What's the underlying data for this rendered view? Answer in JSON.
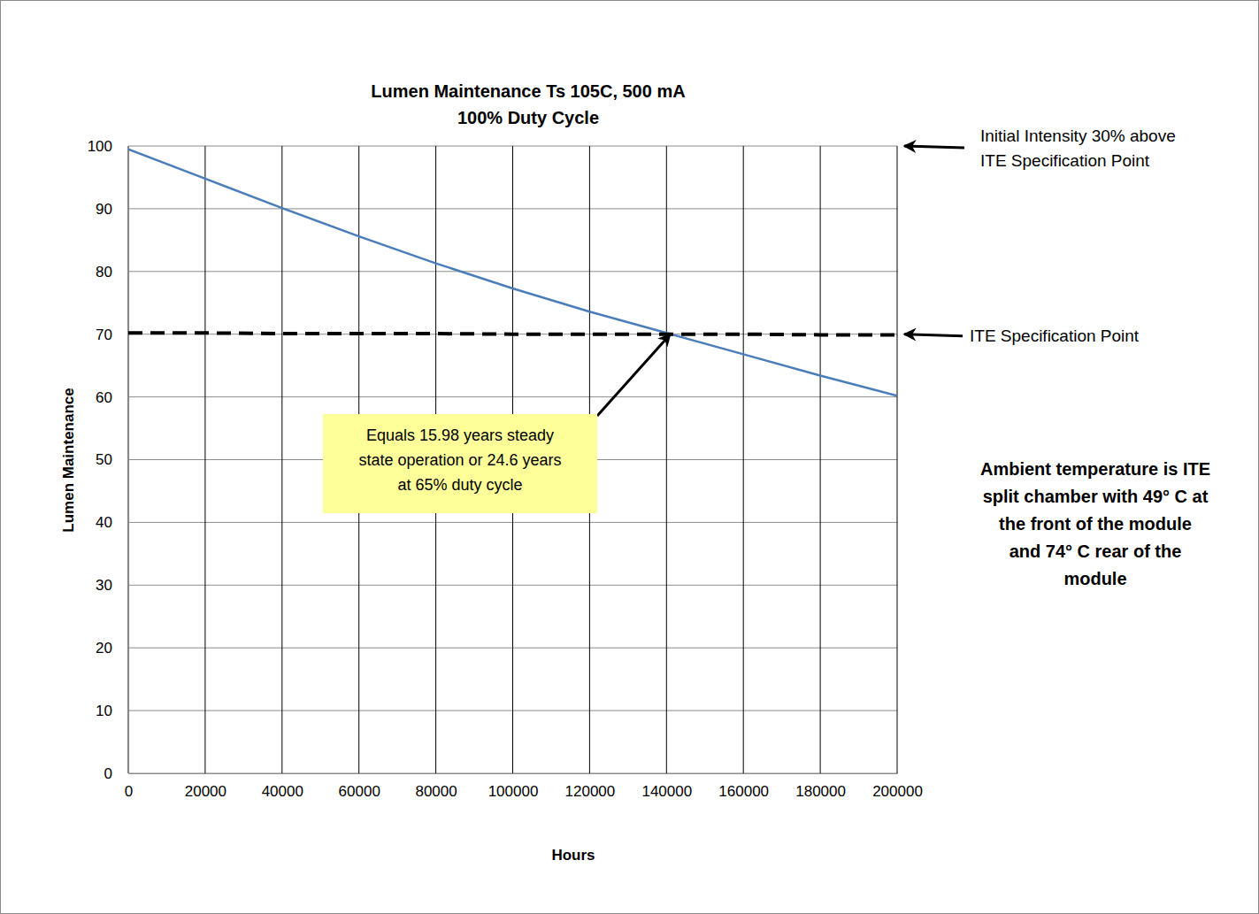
{
  "chart_data": {
    "type": "line",
    "title": "Lumen Maintenance Ts 105C, 500 mA",
    "subtitle": "100% Duty Cycle",
    "x_label": "Hours",
    "y_label": "Lumen Maintenance",
    "x": [
      0,
      20000,
      40000,
      60000,
      80000,
      100000,
      120000,
      140000,
      160000,
      180000,
      200000
    ],
    "series": [
      {
        "color": "#4a7ebb",
        "line_style": "solid",
        "values": [
          99.5,
          94.8,
          90.1,
          85.6,
          81.3,
          77.3,
          73.6,
          70.2,
          66.8,
          63.4,
          60.2
        ]
      },
      {
        "color": "#000000",
        "line_style": "dashed",
        "values": [
          70.2,
          70.2,
          70.1,
          70.1,
          70.1,
          70.0,
          70.0,
          70.0,
          70.0,
          69.9,
          69.9
        ]
      }
    ],
    "xlim": [
      0,
      200000
    ],
    "xticks": [
      0,
      20000,
      40000,
      60000,
      80000,
      100000,
      120000,
      140000,
      160000,
      180000,
      200000
    ],
    "ylim": [
      0,
      100
    ],
    "yticks": [
      0,
      10,
      20,
      30,
      40,
      50,
      60,
      70,
      80,
      90,
      100
    ],
    "grid": true,
    "annotations": [
      {
        "lines": [
          "Initial Intensity 30% above",
          "ITE Specification Point"
        ],
        "y": 100
      },
      {
        "lines": [
          "ITE Specification Point"
        ],
        "y": 70
      },
      {
        "lines": [
          "Equals 15.98 years steady",
          "state operation or 24.6 years",
          "at 65% duty cycle"
        ],
        "x": 141000,
        "y": 70
      },
      {
        "lines": [
          "Ambient temperature is ITE",
          "split chamber with 49° C at",
          "the front of the module",
          "and 74° C rear of the",
          "module"
        ]
      }
    ]
  }
}
